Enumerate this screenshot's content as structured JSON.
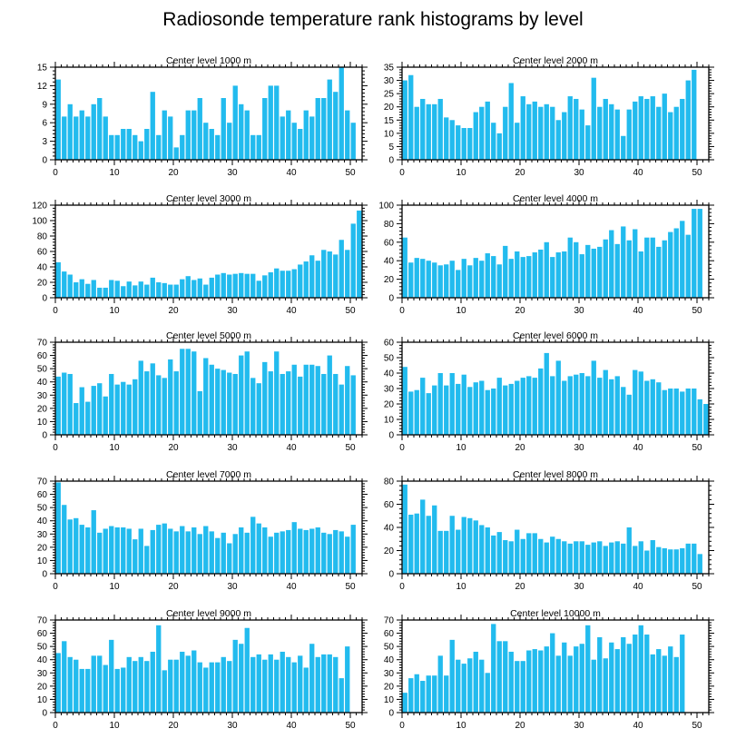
{
  "title": "Radiosonde temperature rank histograms by level",
  "bar_color": "#22bbee",
  "chart_data": [
    {
      "type": "bar",
      "title": "Center level 1000 m",
      "ylim": [
        0,
        15
      ],
      "yticks": [
        0,
        3,
        6,
        9,
        12,
        15
      ],
      "xticks": [
        0,
        10,
        20,
        30,
        40,
        50
      ],
      "values": [
        13,
        7,
        9,
        7,
        8,
        7,
        9,
        10,
        7,
        4,
        4,
        5,
        5,
        4,
        3,
        5,
        11,
        4,
        8,
        7,
        2,
        4,
        8,
        8,
        10,
        6,
        5,
        4,
        10,
        6,
        12,
        9,
        8,
        4,
        4,
        10,
        12,
        12,
        7,
        8,
        6,
        5,
        8,
        7,
        10,
        10,
        13,
        11,
        15,
        8,
        6
      ]
    },
    {
      "type": "bar",
      "title": "Center level 2000 m",
      "ylim": [
        0,
        35
      ],
      "yticks": [
        0,
        5,
        10,
        15,
        20,
        25,
        30,
        35
      ],
      "xticks": [
        0,
        10,
        20,
        30,
        40,
        50
      ],
      "values": [
        30,
        32,
        20,
        23,
        21,
        21,
        23,
        16,
        15,
        13,
        12,
        12,
        18,
        20,
        22,
        14,
        10,
        20,
        29,
        14,
        24,
        21,
        22,
        20,
        21,
        20,
        15,
        18,
        24,
        23,
        19,
        13,
        31,
        20,
        23,
        21,
        19,
        9,
        19,
        22,
        24,
        23,
        24,
        20,
        25,
        18,
        20,
        23,
        30,
        34
      ]
    },
    {
      "type": "bar",
      "title": "Center level 3000 m",
      "ylim": [
        0,
        120
      ],
      "yticks": [
        0,
        20,
        40,
        60,
        80,
        100,
        120
      ],
      "xticks": [
        0,
        10,
        20,
        30,
        40,
        50
      ],
      "values": [
        46,
        34,
        30,
        20,
        24,
        18,
        23,
        13,
        13,
        23,
        22,
        15,
        21,
        16,
        21,
        17,
        26,
        20,
        19,
        17,
        17,
        24,
        28,
        23,
        25,
        17,
        26,
        30,
        32,
        30,
        31,
        32,
        31,
        31,
        22,
        29,
        33,
        38,
        35,
        35,
        37,
        43,
        47,
        55,
        48,
        62,
        60,
        56,
        75,
        62,
        96,
        113
      ]
    },
    {
      "type": "bar",
      "title": "Center level 4000 m",
      "ylim": [
        0,
        100
      ],
      "yticks": [
        0,
        20,
        40,
        60,
        80,
        100
      ],
      "xticks": [
        0,
        10,
        20,
        30,
        40,
        50
      ],
      "values": [
        65,
        38,
        43,
        42,
        40,
        38,
        35,
        36,
        40,
        30,
        42,
        35,
        43,
        40,
        48,
        45,
        36,
        56,
        42,
        50,
        44,
        45,
        49,
        52,
        60,
        44,
        49,
        50,
        65,
        60,
        47,
        57,
        53,
        55,
        63,
        73,
        58,
        77,
        62,
        74,
        50,
        65,
        65,
        55,
        62,
        71,
        75,
        83,
        68,
        96,
        96
      ]
    },
    {
      "type": "bar",
      "title": "Center level 5000 m",
      "ylim": [
        0,
        70
      ],
      "yticks": [
        0,
        10,
        20,
        30,
        40,
        50,
        60,
        70
      ],
      "xticks": [
        0,
        10,
        20,
        30,
        40,
        50
      ],
      "values": [
        44,
        47,
        46,
        24,
        36,
        25,
        37,
        39,
        29,
        46,
        38,
        40,
        38,
        42,
        56,
        48,
        54,
        45,
        43,
        57,
        48,
        65,
        65,
        63,
        33,
        58,
        53,
        50,
        49,
        47,
        46,
        60,
        63,
        43,
        39,
        55,
        48,
        63,
        46,
        48,
        53,
        44,
        53,
        53,
        52,
        46,
        60,
        46,
        38,
        52,
        45
      ]
    },
    {
      "type": "bar",
      "title": "Center level 6000 m",
      "ylim": [
        0,
        60
      ],
      "yticks": [
        0,
        10,
        20,
        30,
        40,
        50,
        60
      ],
      "xticks": [
        0,
        10,
        20,
        30,
        40,
        50
      ],
      "values": [
        44,
        28,
        29,
        37,
        27,
        32,
        40,
        32,
        40,
        33,
        39,
        31,
        34,
        35,
        29,
        30,
        37,
        32,
        33,
        35,
        37,
        38,
        37,
        43,
        53,
        38,
        48,
        35,
        38,
        39,
        40,
        38,
        48,
        37,
        42,
        36,
        38,
        31,
        26,
        42,
        41,
        35,
        36,
        34,
        29,
        30,
        30,
        28,
        30,
        30,
        23,
        20
      ]
    },
    {
      "type": "bar",
      "title": "Center level 7000 m",
      "ylim": [
        0,
        70
      ],
      "yticks": [
        0,
        10,
        20,
        30,
        40,
        50,
        60,
        70
      ],
      "xticks": [
        0,
        10,
        20,
        30,
        40,
        50
      ],
      "values": [
        69,
        52,
        41,
        42,
        37,
        35,
        48,
        31,
        34,
        36,
        35,
        35,
        34,
        26,
        34,
        21,
        33,
        37,
        38,
        34,
        32,
        36,
        32,
        35,
        30,
        36,
        32,
        27,
        31,
        23,
        30,
        35,
        31,
        43,
        38,
        35,
        28,
        31,
        32,
        33,
        39,
        34,
        33,
        34,
        35,
        31,
        30,
        33,
        32,
        28,
        37
      ]
    },
    {
      "type": "bar",
      "title": "Center level 8000 m",
      "ylim": [
        0,
        80
      ],
      "yticks": [
        0,
        20,
        40,
        60,
        80
      ],
      "xticks": [
        0,
        10,
        20,
        30,
        40,
        50
      ],
      "values": [
        77,
        51,
        52,
        64,
        50,
        59,
        37,
        37,
        50,
        38,
        49,
        48,
        46,
        42,
        40,
        33,
        36,
        29,
        28,
        38,
        30,
        35,
        35,
        30,
        27,
        32,
        30,
        28,
        26,
        28,
        28,
        25,
        27,
        28,
        24,
        27,
        28,
        26,
        40,
        24,
        28,
        20,
        29,
        23,
        22,
        21,
        21,
        22,
        26,
        26,
        17
      ]
    },
    {
      "type": "bar",
      "title": "Center level 9000 m",
      "ylim": [
        0,
        70
      ],
      "yticks": [
        0,
        10,
        20,
        30,
        40,
        50,
        60,
        70
      ],
      "xticks": [
        0,
        10,
        20,
        30,
        40,
        50
      ],
      "values": [
        45,
        54,
        42,
        40,
        33,
        33,
        43,
        43,
        36,
        55,
        33,
        34,
        42,
        39,
        42,
        39,
        46,
        66,
        32,
        40,
        40,
        46,
        43,
        47,
        38,
        34,
        38,
        38,
        42,
        39,
        55,
        52,
        64,
        42,
        44,
        40,
        44,
        40,
        46,
        42,
        38,
        43,
        34,
        52,
        42,
        44,
        44,
        42,
        26,
        50
      ]
    },
    {
      "type": "bar",
      "title": "Center level 10000 m",
      "ylim": [
        0,
        70
      ],
      "yticks": [
        0,
        10,
        20,
        30,
        40,
        50,
        60,
        70
      ],
      "xticks": [
        0,
        10,
        20,
        30,
        40,
        50
      ],
      "values": [
        15,
        26,
        29,
        24,
        28,
        28,
        43,
        28,
        55,
        40,
        37,
        41,
        46,
        40,
        30,
        67,
        54,
        54,
        46,
        39,
        39,
        47,
        48,
        47,
        50,
        60,
        43,
        53,
        43,
        50,
        52,
        66,
        40,
        57,
        41,
        53,
        48,
        57,
        52,
        59,
        66,
        59,
        44,
        48,
        43,
        50,
        42,
        59
      ]
    }
  ]
}
